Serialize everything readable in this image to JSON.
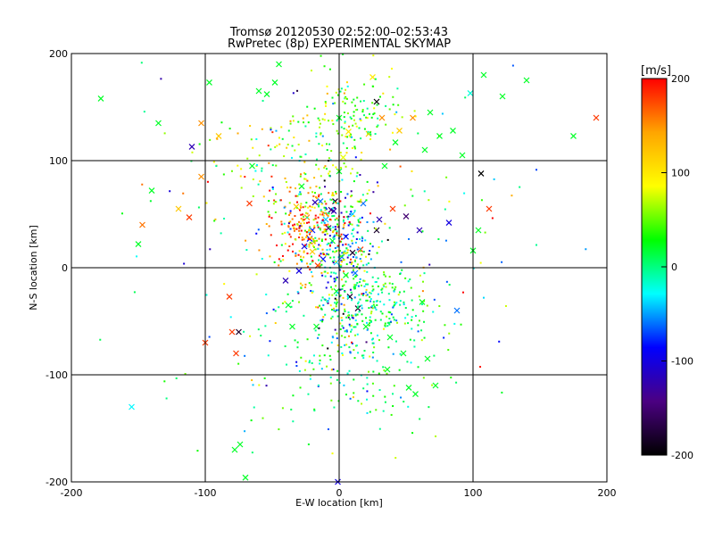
{
  "chart_data": {
    "type": "scatter",
    "title": "Tromsø 20120530 02:52:00–02:53:43",
    "subtitle": "RwPretec (8p) EXPERIMENTAL SKYMAP",
    "xlabel": "E-W location [km]",
    "ylabel": "N-S location [km]",
    "xlim": [
      -200,
      200
    ],
    "ylim": [
      -200,
      200
    ],
    "xticks": [
      "-200",
      "-100",
      "0",
      "100",
      "200"
    ],
    "yticks": [
      "-200",
      "-100",
      "0",
      "100",
      "200"
    ],
    "grid": true,
    "colorbar": {
      "label": "[m/s]",
      "range": [
        -200,
        200
      ],
      "ticks": [
        "200",
        "100",
        "0",
        "-100",
        "-200"
      ],
      "colors": [
        "#000000",
        "#4b0082",
        "#0000ff",
        "#00ffff",
        "#00ff00",
        "#ffff00",
        "#ffa500",
        "#ff0000"
      ]
    },
    "series": [
      {
        "marker": "x",
        "points": [
          [
            -178,
            158,
            20
          ],
          [
            -155,
            -130,
            -30
          ],
          [
            -150,
            22,
            20
          ],
          [
            -147,
            40,
            160
          ],
          [
            -140,
            72,
            20
          ],
          [
            -135,
            135,
            20
          ],
          [
            -120,
            55,
            120
          ],
          [
            -112,
            47,
            180
          ],
          [
            -110,
            113,
            -120
          ],
          [
            -103,
            135,
            150
          ],
          [
            -103,
            85,
            150
          ],
          [
            -100,
            -70,
            180
          ],
          [
            -97,
            173,
            20
          ],
          [
            -90,
            123,
            120
          ],
          [
            -82,
            -27,
            180
          ],
          [
            -80,
            -60,
            180
          ],
          [
            -78,
            -170,
            20
          ],
          [
            -77,
            -80,
            180
          ],
          [
            -75,
            -60,
            -180
          ],
          [
            -74,
            -165,
            20
          ],
          [
            -70,
            -196,
            20
          ],
          [
            -67,
            60,
            180
          ],
          [
            -65,
            95,
            20
          ],
          [
            -60,
            165,
            20
          ],
          [
            -54,
            162,
            20
          ],
          [
            -48,
            173,
            20
          ],
          [
            -45,
            190,
            20
          ],
          [
            -40,
            -12,
            -120
          ],
          [
            -38,
            -35,
            20
          ],
          [
            -35,
            -55,
            20
          ],
          [
            -32,
            57,
            120
          ],
          [
            -30,
            -3,
            -100
          ],
          [
            -28,
            76,
            20
          ],
          [
            -26,
            20,
            -100
          ],
          [
            -24,
            47,
            150
          ],
          [
            -22,
            27,
            -80
          ],
          [
            -20,
            35,
            -80
          ],
          [
            -20,
            15,
            120
          ],
          [
            -18,
            61,
            -120
          ],
          [
            -17,
            -55,
            20
          ],
          [
            -16,
            2,
            180
          ],
          [
            -14,
            62,
            -60
          ],
          [
            -12,
            8,
            -80
          ],
          [
            -10,
            45,
            -40
          ],
          [
            -8,
            37,
            -150
          ],
          [
            -6,
            54,
            -150
          ],
          [
            -5,
            25,
            20
          ],
          [
            -4,
            53,
            -120
          ],
          [
            -3,
            62,
            -180
          ],
          [
            -2,
            5,
            -40
          ],
          [
            -2,
            -22,
            20
          ],
          [
            -1,
            -200,
            -100
          ],
          [
            0,
            140,
            20
          ],
          [
            0,
            90,
            20
          ],
          [
            2,
            10,
            -60
          ],
          [
            3,
            103,
            80
          ],
          [
            5,
            29,
            -80
          ],
          [
            5,
            -7,
            20
          ],
          [
            7,
            127,
            100
          ],
          [
            8,
            -27,
            -180
          ],
          [
            10,
            14,
            -180
          ],
          [
            10,
            50,
            -40
          ],
          [
            12,
            -5,
            -60
          ],
          [
            14,
            -38,
            -180
          ],
          [
            16,
            17,
            180
          ],
          [
            18,
            60,
            -60
          ],
          [
            20,
            -55,
            20
          ],
          [
            22,
            125,
            120
          ],
          [
            25,
            178,
            100
          ],
          [
            28,
            155,
            -200
          ],
          [
            28,
            35,
            -180
          ],
          [
            30,
            45,
            -120
          ],
          [
            32,
            140,
            150
          ],
          [
            34,
            95,
            20
          ],
          [
            36,
            -95,
            20
          ],
          [
            38,
            -65,
            20
          ],
          [
            40,
            55,
            180
          ],
          [
            42,
            117,
            20
          ],
          [
            45,
            128,
            120
          ],
          [
            48,
            -80,
            20
          ],
          [
            50,
            48,
            -150
          ],
          [
            52,
            -112,
            20
          ],
          [
            55,
            140,
            150
          ],
          [
            57,
            -118,
            20
          ],
          [
            60,
            35,
            -120
          ],
          [
            62,
            -32,
            20
          ],
          [
            64,
            110,
            20
          ],
          [
            66,
            -85,
            20
          ],
          [
            68,
            145,
            20
          ],
          [
            72,
            -110,
            20
          ],
          [
            75,
            123,
            20
          ],
          [
            82,
            42,
            -100
          ],
          [
            85,
            128,
            20
          ],
          [
            88,
            -40,
            -60
          ],
          [
            92,
            105,
            20
          ],
          [
            98,
            163,
            -20
          ],
          [
            100,
            16,
            20
          ],
          [
            104,
            35,
            20
          ],
          [
            106,
            88,
            -200
          ],
          [
            108,
            180,
            20
          ],
          [
            112,
            55,
            180
          ],
          [
            122,
            160,
            20
          ],
          [
            140,
            175,
            20
          ],
          [
            175,
            123,
            20
          ],
          [
            192,
            140,
            180
          ]
        ]
      },
      {
        "marker": "dot",
        "cluster_points_note": ""
      }
    ]
  }
}
